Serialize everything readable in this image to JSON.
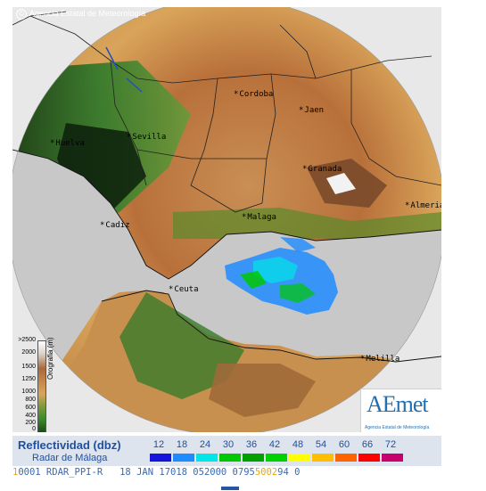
{
  "copyright": {
    "symbol": "©",
    "text": "Agencia Estatal de Meteorología"
  },
  "cities": [
    {
      "name": "Cordoba",
      "key": "cordoba"
    },
    {
      "name": "Jaen",
      "key": "jaen"
    },
    {
      "name": "Huelva",
      "key": "huelva"
    },
    {
      "name": "Sevilla",
      "key": "sevilla"
    },
    {
      "name": "Granada",
      "key": "granada"
    },
    {
      "name": "Almeria",
      "key": "almeria"
    },
    {
      "name": "Malaga",
      "key": "malaga"
    },
    {
      "name": "Cadiz",
      "key": "cadiz"
    },
    {
      "name": "Ceuta",
      "key": "ceuta"
    },
    {
      "name": "Melilla",
      "key": "melilla"
    }
  ],
  "orography": {
    "label": "Orografia (m)",
    "ticks": [
      ">2500",
      "2000",
      "1500",
      "1250",
      "1000",
      "800",
      "600",
      "400",
      "200",
      "0"
    ]
  },
  "logo": {
    "text_main": "AEmet",
    "subtitle": "Agencia Estatal de Meteorología"
  },
  "legend": {
    "title": "Reflectividad (dbz)",
    "subtitle": "Radar de Málaga",
    "values": [
      "12",
      "18",
      "24",
      "30",
      "36",
      "42",
      "48",
      "54",
      "60",
      "66",
      "72"
    ],
    "colors": [
      "#1414dc",
      "#1e8cff",
      "#00e6e6",
      "#00c800",
      "#00a000",
      "#00d200",
      "#ffff00",
      "#ffbe00",
      "#ff6400",
      "#ff0000",
      "#c8006e"
    ]
  },
  "status": {
    "prefix": "1",
    "text": "0001 RDAR_PPI-R   18 JAN 17018 052000 0795",
    "suffix": "5002",
    "tail": "94 0"
  },
  "colors": {
    "sea": "#c8c8c8",
    "accent": "#2050a0"
  }
}
